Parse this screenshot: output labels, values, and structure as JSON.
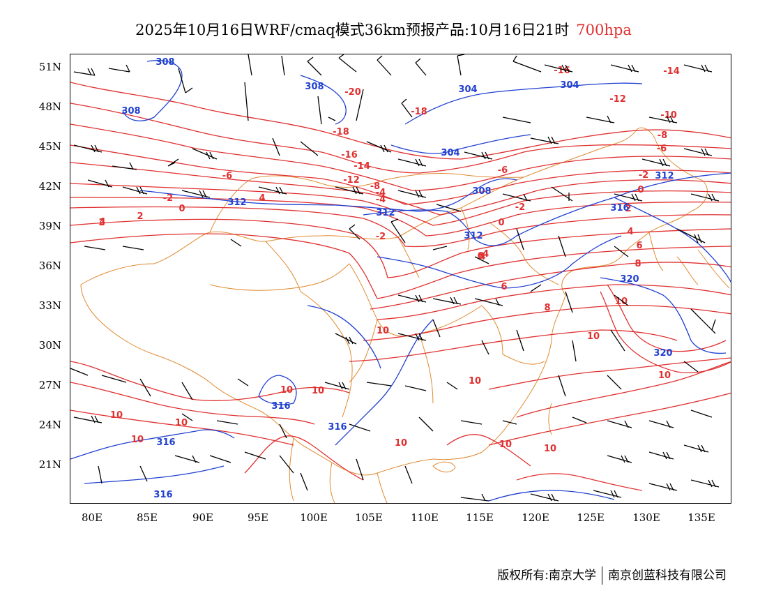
{
  "title": {
    "main": "2025年10月16日WRF/cmaq模式36km预报产品:10月16日21时",
    "level": "700hpa"
  },
  "colors": {
    "temperature": "#e03030",
    "height": "#2040d0",
    "border": "#e08a30",
    "wind": "#000000"
  },
  "axes": {
    "lat_labels": [
      "51N",
      "48N",
      "45N",
      "42N",
      "39N",
      "36N",
      "33N",
      "30N",
      "27N",
      "24N",
      "21N"
    ],
    "lon_labels": [
      "80E",
      "85E",
      "90E",
      "95E",
      "100E",
      "105E",
      "110E",
      "115E",
      "120E",
      "125E",
      "130E",
      "135E"
    ]
  },
  "contours": {
    "temperature_labels": [
      "-20",
      "-18",
      "-18",
      "-16",
      "-16",
      "-14",
      "-14",
      "-12",
      "-12",
      "-10",
      "-8",
      "-8",
      "-6",
      "-6",
      "-6",
      "-4",
      "-4",
      "-4",
      "-2",
      "-2",
      "-2",
      "-2",
      "0",
      "0",
      "0",
      "2",
      "2",
      "2",
      "4",
      "4",
      "4",
      "4",
      "6",
      "6",
      "6",
      "8",
      "8",
      "10",
      "10",
      "10",
      "10",
      "10",
      "10",
      "10",
      "10",
      "10",
      "10",
      "10",
      "10",
      "10"
    ],
    "height_labels": [
      "308",
      "308",
      "308",
      "304",
      "304",
      "304",
      "308",
      "312",
      "312",
      "312",
      "312",
      "316",
      "320",
      "320",
      "316",
      "316",
      "316",
      "316"
    ]
  },
  "footer": {
    "copyright": "版权所有:南京大学",
    "company": "南京创蓝科技有限公司"
  }
}
